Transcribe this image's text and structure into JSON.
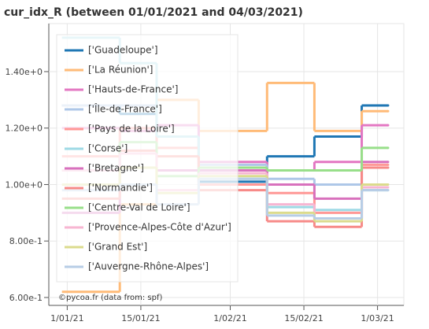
{
  "chart_data": {
    "type": "line",
    "title": "cur_idx_R (between 01/01/2021 and 04/03/2021)",
    "x": [
      -1,
      10,
      17,
      25,
      31,
      38,
      47,
      56,
      61
    ],
    "xlim": [
      -3.5,
      64
    ],
    "xticks": [
      {
        "value": 0,
        "label": "1/01/21"
      },
      {
        "value": 14,
        "label": "15/01/21"
      },
      {
        "value": 31,
        "label": "1/02/21"
      },
      {
        "value": 45,
        "label": "15/02/21"
      },
      {
        "value": 59,
        "label": "1/03/21"
      }
    ],
    "ylim": [
      0.572,
      1.57
    ],
    "yticks": [
      {
        "value": 0.6,
        "label": "6.00e-1"
      },
      {
        "value": 0.8,
        "label": "8.00e-1"
      },
      {
        "value": 1.0,
        "label": "1.00e+0"
      },
      {
        "value": 1.2,
        "label": "1.20e+0"
      },
      {
        "value": 1.4,
        "label": "1.40e+0"
      }
    ],
    "grid": true,
    "legend": "top-left",
    "annotation": "©pycoa.fr (data from: spf)",
    "series": [
      {
        "name": "['Guadeloupe']",
        "color": "#1f77b4",
        "values": [
          1.28,
          1.25,
          1.17,
          1.01,
          1.01,
          1.1,
          1.17,
          1.28,
          1.28
        ]
      },
      {
        "name": "['La Réunion']",
        "color": "#ffbb78",
        "values": [
          0.62,
          0.93,
          1.3,
          1.19,
          1.19,
          1.36,
          1.19,
          1.26,
          1.26
        ]
      },
      {
        "name": "['Hauts-de-France']",
        "color": "#e377c2",
        "values": [
          1.2,
          1.19,
          1.21,
          1.08,
          1.08,
          1.05,
          1.08,
          1.21,
          1.21
        ]
      },
      {
        "name": "['Île-de-France']",
        "color": "#aec7e8",
        "values": [
          1.28,
          1.28,
          1.17,
          1.07,
          1.07,
          1.02,
          1.0,
          1.06,
          1.06
        ]
      },
      {
        "name": "['Pays de la Loire']",
        "color": "#ff9896",
        "values": [
          1.1,
          1.2,
          1.13,
          1.0,
          1.0,
          0.97,
          0.9,
          1.07,
          1.07
        ]
      },
      {
        "name": "['Corse']",
        "color": "#9edae5",
        "values": [
          1.52,
          1.43,
          1.17,
          1.02,
          1.02,
          0.92,
          0.91,
          0.98,
          0.98
        ]
      },
      {
        "name": "['Bretagne']",
        "color": "#d871bd",
        "values": [
          0.9,
          1.0,
          1.05,
          1.05,
          1.05,
          1.0,
          0.95,
          1.08,
          1.08
        ]
      },
      {
        "name": "['Normandie']",
        "color": "#f78a88",
        "values": [
          0.95,
          1.12,
          1.1,
          0.98,
          0.98,
          0.87,
          0.85,
          1.06,
          1.06
        ]
      },
      {
        "name": "['Centre-Val de Loire']",
        "color": "#98df8a",
        "values": [
          1.05,
          1.15,
          1.03,
          1.06,
          1.06,
          1.05,
          1.05,
          1.13,
          1.13
        ]
      },
      {
        "name": "['Provence-Alpes-Côte d'Azur']",
        "color": "#f7b6d2",
        "values": [
          1.05,
          1.11,
          0.98,
          1.04,
          1.04,
          0.93,
          0.88,
          0.99,
          0.99
        ]
      },
      {
        "name": "['Grand Est']",
        "color": "#dbdb8d",
        "values": [
          1.0,
          1.06,
          0.97,
          1.03,
          1.03,
          0.9,
          0.87,
          1.0,
          1.0
        ]
      },
      {
        "name": "['Auvergne-Rhône-Alpes']",
        "color": "#b7cde6",
        "values": [
          0.98,
          1.0,
          0.93,
          1.02,
          1.02,
          0.89,
          0.88,
          0.98,
          0.98
        ]
      }
    ]
  }
}
